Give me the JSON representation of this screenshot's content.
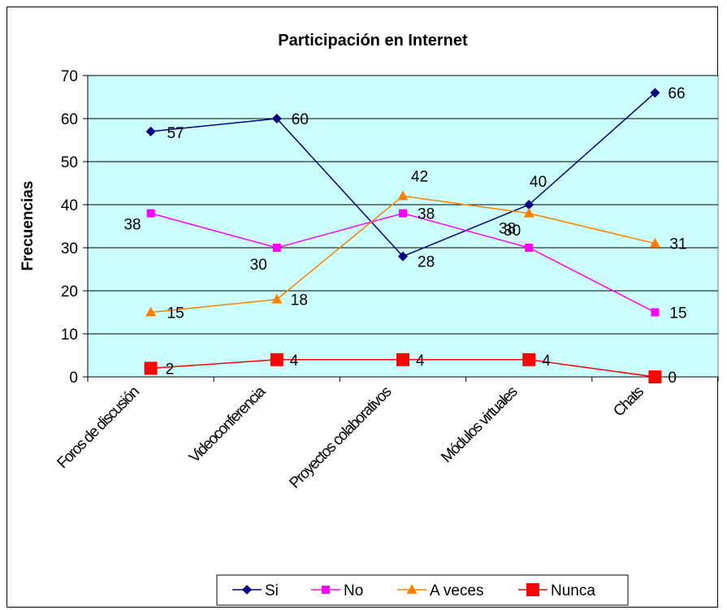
{
  "chart_data": {
    "type": "line",
    "title": "Participación en Internet",
    "ylabel": "Frecuencias",
    "xlabel": "",
    "ylim": [
      0,
      70
    ],
    "yticks": [
      0,
      10,
      20,
      30,
      40,
      50,
      60,
      70
    ],
    "grid": true,
    "plot_background": "#CCFFFF",
    "legend_position": "bottom",
    "categories": [
      "Foros de discusión",
      "Videoconferencia",
      "Proyectos colaborativos",
      "Módulos virtuales",
      "Chats"
    ],
    "series": [
      {
        "name": "Si",
        "values": [
          57,
          60,
          28,
          40,
          66
        ],
        "color": "#000080",
        "marker": "diamond"
      },
      {
        "name": "No",
        "values": [
          38,
          30,
          38,
          30,
          15
        ],
        "color": "#FF00FF",
        "marker": "square"
      },
      {
        "name": "A veces",
        "values": [
          15,
          18,
          42,
          38,
          31
        ],
        "color": "#FF8000",
        "marker": "triangle"
      },
      {
        "name": "Nunca",
        "values": [
          2,
          4,
          4,
          4,
          0
        ],
        "color": "#FF0000",
        "marker": "square-large"
      }
    ]
  }
}
